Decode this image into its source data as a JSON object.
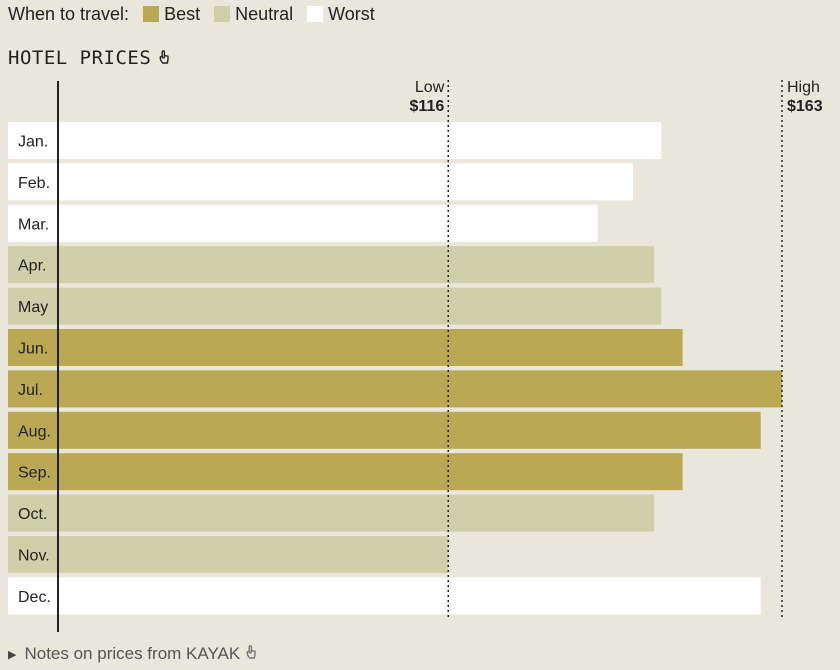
{
  "legend": {
    "lead": "When to travel:",
    "items": [
      {
        "label": "Best",
        "color": "#baa952"
      },
      {
        "label": "Neutral",
        "color": "#cfcfa9"
      },
      {
        "label": "Worst",
        "color": "#ffffff"
      }
    ]
  },
  "section_title": "HOTEL PRICES",
  "notes_label": "Notes on prices from KAYAK",
  "chart_data": {
    "type": "bar",
    "orientation": "horizontal",
    "categories": [
      "Jan.",
      "Feb.",
      "Mar.",
      "Apr.",
      "May",
      "Jun.",
      "Jul.",
      "Aug.",
      "Sep.",
      "Oct.",
      "Nov.",
      "Dec."
    ],
    "values": [
      146,
      142,
      137,
      145,
      146,
      149,
      163,
      160,
      149,
      145,
      116,
      160
    ],
    "ratings": [
      "Worst",
      "Worst",
      "Worst",
      "Neutral",
      "Neutral",
      "Best",
      "Best",
      "Best",
      "Best",
      "Neutral",
      "Neutral",
      "Worst"
    ],
    "reference_lines": [
      {
        "label": "Low",
        "value_label": "$116",
        "value": 116
      },
      {
        "label": "High",
        "value_label": "$163",
        "value": 163
      }
    ],
    "xlim": [
      54,
      163
    ]
  }
}
